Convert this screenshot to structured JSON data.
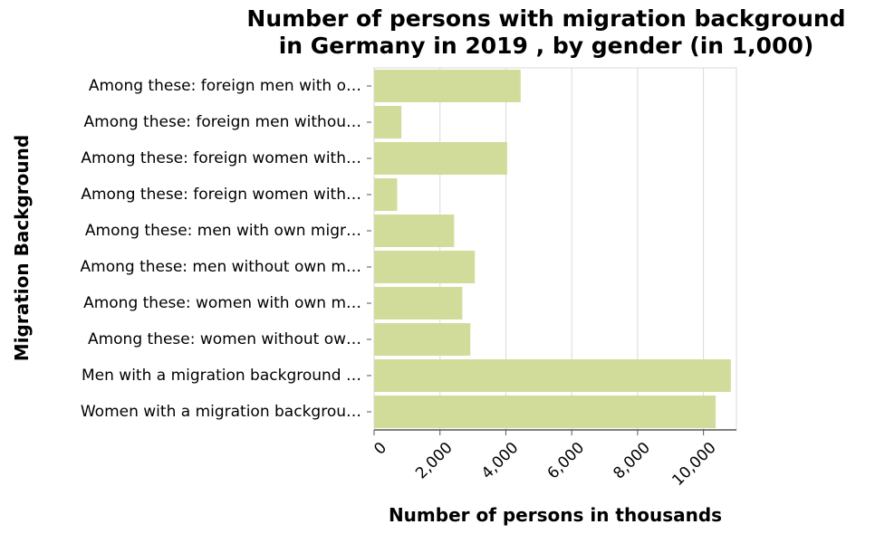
{
  "chart_data": {
    "type": "bar",
    "orientation": "horizontal",
    "title_lines": [
      "Number of persons with migration background",
      "in Germany in 2019 , by gender (in 1,000)"
    ],
    "xlabel": "Number of persons in thousands",
    "ylabel": "Migration Background",
    "categories": [
      "Among these: foreign men with o…",
      "Among these: foreign men withou…",
      "Among these: foreign women with…",
      "Among these: foreign women with…",
      "Among these: men with own migr…",
      "Among these: men without own m…",
      "Among these: women with own m…",
      "Among these: women without ow…",
      "Men with a migration background …",
      "Women with a migration backgrou…"
    ],
    "values": [
      4450,
      830,
      4040,
      700,
      2430,
      3060,
      2680,
      2920,
      10830,
      10370
    ],
    "xlim": [
      0,
      11000
    ],
    "xticks": [
      0,
      2000,
      4000,
      6000,
      8000,
      10000
    ],
    "xtick_labels": [
      "0",
      "2,000",
      "4,000",
      "6,000",
      "8,000",
      "10,000"
    ],
    "grid": "vertical",
    "colors": {
      "bar": "#d2dc9a",
      "grid": "#d9d9d9",
      "axis": "#555555"
    }
  }
}
